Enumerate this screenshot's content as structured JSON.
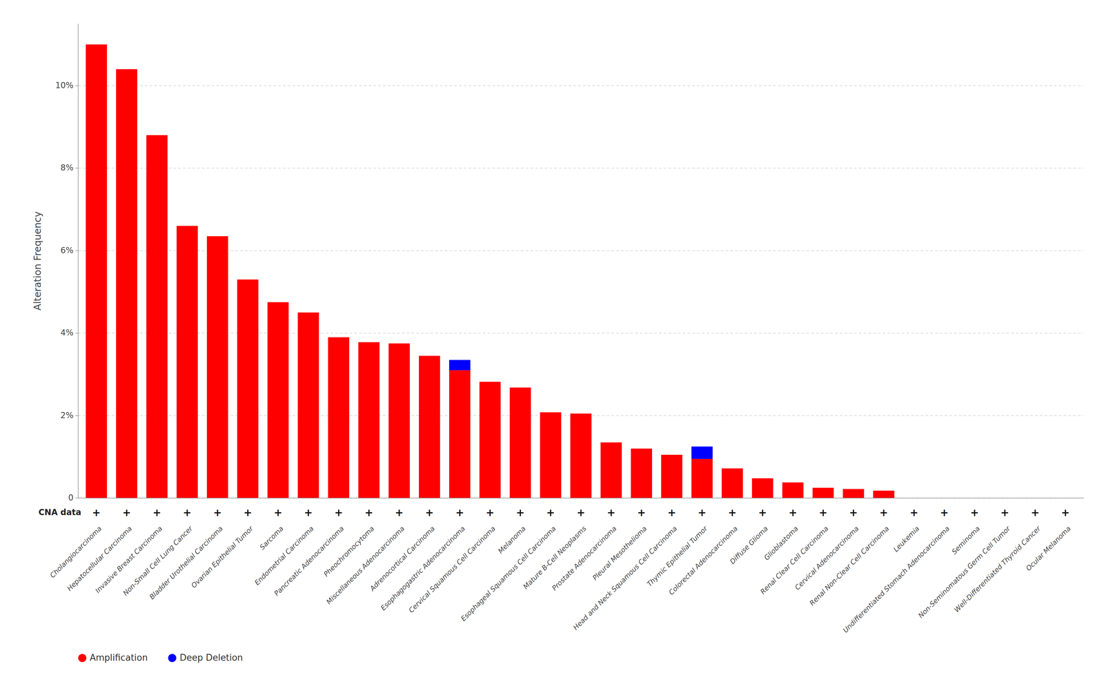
{
  "chart_data": {
    "type": "bar",
    "stacked": true,
    "y_label": "Alteration Frequency",
    "categories": [
      "Cholangiocarcinoma",
      "Hepatocellular Carcinoma",
      "Invasive Breast Carcinoma",
      "Non-Small Cell Lung Cancer",
      "Bladder Urothelial Carcinoma",
      "Ovarian Epithelial Tumor",
      "Sarcoma",
      "Endometrial Carcinoma",
      "Pancreatic Adenocarcinoma",
      "Pheochromocytoma",
      "Miscellaneous Adenocarcinoma",
      "Adrenocortical Carcinoma",
      "Esophagogastric Adenocarcinoma",
      "Cervical Squamous Cell Carcinoma",
      "Melanoma",
      "Esophageal Squamous Cell Carcinoma",
      "Mature B-Cell Neoplasms",
      "Prostate Adenocarcinoma",
      "Pleural Mesothelioma",
      "Head and Neck Squamous Cell Carcinoma",
      "Thymic Epithelial Tumor",
      "Colorectal Adenocarcinoma",
      "Diffuse Glioma",
      "Glioblastoma",
      "Renal Clear Cell Carcinoma",
      "Cervical Adenocarcinoma",
      "Renal Non-Clear Cell Carcinoma",
      "Leukemia",
      "Undifferentiated Stomach Adenocarcinoma",
      "Seminoma",
      "Non-Seminomatous Germ Cell Tumor",
      "Well-Differentiated Thyroid Cancer",
      "Ocular Melanoma"
    ],
    "series": [
      {
        "name": "Amplification",
        "color": "#FF0000",
        "values": [
          11.0,
          10.4,
          8.8,
          6.6,
          6.35,
          5.3,
          4.75,
          4.5,
          3.9,
          3.78,
          3.75,
          3.45,
          3.1,
          2.82,
          2.68,
          2.08,
          2.05,
          1.35,
          1.2,
          1.05,
          0.95,
          0.72,
          0.48,
          0.38,
          0.25,
          0.22,
          0.18,
          0.0,
          0.0,
          0.0,
          0.0,
          0.0,
          0.0
        ]
      },
      {
        "name": "Deep Deletion",
        "color": "#0000FF",
        "values": [
          0.0,
          0.0,
          0.0,
          0.0,
          0.0,
          0.0,
          0.0,
          0.0,
          0.0,
          0.0,
          0.0,
          0.0,
          0.25,
          0.0,
          0.0,
          0.0,
          0.0,
          0.0,
          0.0,
          0.0,
          0.3,
          0.0,
          0.0,
          0.0,
          0.0,
          0.0,
          0.0,
          0.0,
          0.0,
          0.0,
          0.0,
          0.0,
          0.0
        ]
      }
    ],
    "ylim": [
      0,
      11.5
    ],
    "yticks": [
      0,
      {
        "value": 2,
        "label": "2%"
      },
      {
        "value": 4,
        "label": "4%"
      },
      {
        "value": 6,
        "label": "6%"
      },
      {
        "value": 8,
        "label": "8%"
      },
      {
        "value": 10,
        "label": "10%"
      }
    ],
    "grid": true,
    "legend": "lower left",
    "annotations": [
      {
        "text": "CNA data"
      },
      {
        "text": "+",
        "x": "Cholangiocarcinoma"
      },
      {
        "text": "+",
        "x": "Hepatocellular Carcinoma"
      },
      {
        "text": "+",
        "x": "Invasive Breast Carcinoma"
      },
      {
        "text": "+",
        "x": "Non-Small Cell Lung Cancer"
      },
      {
        "text": "+",
        "x": "Bladder Urothelial Carcinoma"
      },
      {
        "text": "+",
        "x": "Ovarian Epithelial Tumor"
      },
      {
        "text": "+",
        "x": "Sarcoma"
      },
      {
        "text": "+",
        "x": "Endometrial Carcinoma"
      },
      {
        "text": "+",
        "x": "Pancreatic Adenocarcinoma"
      },
      {
        "text": "+",
        "x": "Pheochromocytoma"
      },
      {
        "text": "+",
        "x": "Miscellaneous Adenocarcinoma"
      },
      {
        "text": "+",
        "x": "Adrenocortical Carcinoma"
      },
      {
        "text": "+",
        "x": "Esophagogastric Adenocarcinoma"
      },
      {
        "text": "+",
        "x": "Cervical Squamous Cell Carcinoma"
      },
      {
        "text": "+",
        "x": "Melanoma"
      },
      {
        "text": "+",
        "x": "Esophageal Squamous Cell Carcinoma"
      },
      {
        "text": "+",
        "x": "Mature B-Cell Neoplasms"
      },
      {
        "text": "+",
        "x": "Prostate Adenocarcinoma"
      },
      {
        "text": "+",
        "x": "Pleural Mesothelioma"
      },
      {
        "text": "+",
        "x": "Head and Neck Squamous Cell Carcinoma"
      },
      {
        "text": "+",
        "x": "Thymic Epithelial Tumor"
      },
      {
        "text": "+",
        "x": "Colorectal Adenocarcinoma"
      },
      {
        "text": "+",
        "x": "Diffuse Glioma"
      },
      {
        "text": "+",
        "x": "Glioblastoma"
      },
      {
        "text": "+",
        "x": "Renal Clear Cell Carcinoma"
      },
      {
        "text": "+",
        "x": "Cervical Adenocarcinoma"
      },
      {
        "text": "+",
        "x": "Renal Non-Clear Cell Carcinoma"
      },
      {
        "text": "+",
        "x": "Leukemia"
      },
      {
        "text": "+",
        "x": "Undifferentiated Stomach Adenocarcinoma"
      },
      {
        "text": "+",
        "x": "Seminoma"
      },
      {
        "text": "+",
        "x": "Non-Seminomatous Germ Cell Tumor"
      },
      {
        "text": "+",
        "x": "Well-Differentiated Thyroid Cancer"
      },
      {
        "text": "+",
        "x": "Ocular Melanoma"
      }
    ]
  }
}
